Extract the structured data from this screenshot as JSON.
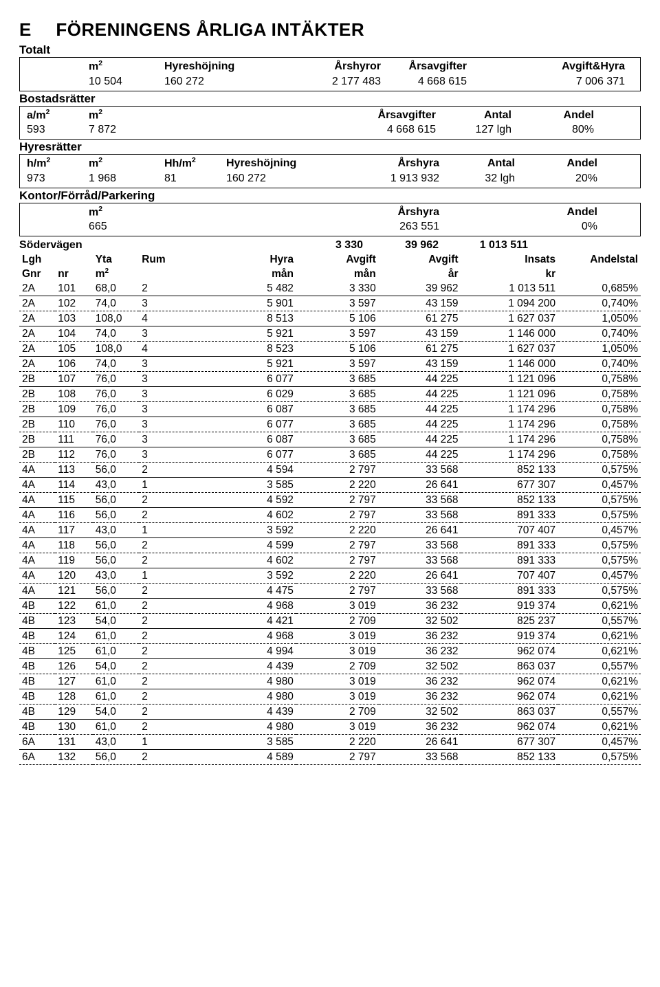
{
  "header": {
    "letter": "E",
    "title": "FÖRENINGENS ÅRLIGA INTÄKTER"
  },
  "totalt": {
    "label": "Totalt",
    "cols": [
      "m²",
      "Hyreshöjning",
      "Årshyror",
      "Årsavgifter",
      "Avgift&Hyra"
    ],
    "m2": "10 504",
    "hyreshojning": "160 272",
    "arshyror": "2 177 483",
    "arsavgifter": "4 668 615",
    "avgifthyra": "7 006 371"
  },
  "bostadsratter": {
    "label": "Bostadsrätter",
    "cols": [
      "a/m²",
      "m²",
      "",
      "",
      "Årsavgifter",
      "Antal",
      "Andel"
    ],
    "am2": "593",
    "m2": "7 872",
    "arsavgifter": "4 668 615",
    "antal": "127 lgh",
    "andel": "80%"
  },
  "hyresratter": {
    "label": "Hyresrätter",
    "cols": [
      "h/m²",
      "m²",
      "Hh/m²",
      "Hyreshöjning",
      "Årshyra",
      "Antal",
      "Andel"
    ],
    "hm2": "973",
    "m2": "1 968",
    "hhm2": "81",
    "hyreshojning": "160 272",
    "arshyra": "1 913 932",
    "antal": "32 lgh",
    "andel": "20%"
  },
  "kontor": {
    "label": "Kontor/Förråd/Parkering",
    "cols": [
      "",
      "m²",
      "",
      "",
      "Årshyra",
      "",
      "Andel"
    ],
    "m2": "665",
    "arshyra": "263 551",
    "andel": "0%"
  },
  "street": {
    "name": "Södervägen",
    "avgift_man": "3 330",
    "avgift_ar": "39 962",
    "insats": "1 013 511"
  },
  "table": {
    "headers1": [
      "Lgh",
      "",
      "Yta",
      "Rum",
      "Hyra",
      "Avgift",
      "Avgift",
      "Insats",
      "Andelstal"
    ],
    "headers2": [
      "Gnr",
      "nr",
      "m²",
      "",
      "mån",
      "mån",
      "år",
      "kr",
      ""
    ],
    "rows": [
      [
        "2A",
        "101",
        "68,0",
        "2",
        "5 482",
        "3 330",
        "39 962",
        "1 013 511",
        "0,685%"
      ],
      [
        "2A",
        "102",
        "74,0",
        "3",
        "5 901",
        "3 597",
        "43 159",
        "1 094 200",
        "0,740%"
      ],
      [
        "2A",
        "103",
        "108,0",
        "4",
        "8 513",
        "5 106",
        "61 275",
        "1 627 037",
        "1,050%"
      ],
      [
        "2A",
        "104",
        "74,0",
        "3",
        "5 921",
        "3 597",
        "43 159",
        "1 146 000",
        "0,740%"
      ],
      [
        "2A",
        "105",
        "108,0",
        "4",
        "8 523",
        "5 106",
        "61 275",
        "1 627 037",
        "1,050%"
      ],
      [
        "2A",
        "106",
        "74,0",
        "3",
        "5 921",
        "3 597",
        "43 159",
        "1 146 000",
        "0,740%"
      ],
      [
        "2B",
        "107",
        "76,0",
        "3",
        "6 077",
        "3 685",
        "44 225",
        "1 121 096",
        "0,758%"
      ],
      [
        "2B",
        "108",
        "76,0",
        "3",
        "6 029",
        "3 685",
        "44 225",
        "1 121 096",
        "0,758%"
      ],
      [
        "2B",
        "109",
        "76,0",
        "3",
        "6 087",
        "3 685",
        "44 225",
        "1 174 296",
        "0,758%"
      ],
      [
        "2B",
        "110",
        "76,0",
        "3",
        "6 077",
        "3 685",
        "44 225",
        "1 174 296",
        "0,758%"
      ],
      [
        "2B",
        "111",
        "76,0",
        "3",
        "6 087",
        "3 685",
        "44 225",
        "1 174 296",
        "0,758%"
      ],
      [
        "2B",
        "112",
        "76,0",
        "3",
        "6 077",
        "3 685",
        "44 225",
        "1 174 296",
        "0,758%"
      ],
      [
        "4A",
        "113",
        "56,0",
        "2",
        "4 594",
        "2 797",
        "33 568",
        "852 133",
        "0,575%"
      ],
      [
        "4A",
        "114",
        "43,0",
        "1",
        "3 585",
        "2 220",
        "26 641",
        "677 307",
        "0,457%"
      ],
      [
        "4A",
        "115",
        "56,0",
        "2",
        "4 592",
        "2 797",
        "33 568",
        "852 133",
        "0,575%"
      ],
      [
        "4A",
        "116",
        "56,0",
        "2",
        "4 602",
        "2 797",
        "33 568",
        "891 333",
        "0,575%"
      ],
      [
        "4A",
        "117",
        "43,0",
        "1",
        "3 592",
        "2 220",
        "26 641",
        "707 407",
        "0,457%"
      ],
      [
        "4A",
        "118",
        "56,0",
        "2",
        "4 599",
        "2 797",
        "33 568",
        "891 333",
        "0,575%"
      ],
      [
        "4A",
        "119",
        "56,0",
        "2",
        "4 602",
        "2 797",
        "33 568",
        "891 333",
        "0,575%"
      ],
      [
        "4A",
        "120",
        "43,0",
        "1",
        "3 592",
        "2 220",
        "26 641",
        "707 407",
        "0,457%"
      ],
      [
        "4A",
        "121",
        "56,0",
        "2",
        "4 475",
        "2 797",
        "33 568",
        "891 333",
        "0,575%"
      ],
      [
        "4B",
        "122",
        "61,0",
        "2",
        "4 968",
        "3 019",
        "36 232",
        "919 374",
        "0,621%"
      ],
      [
        "4B",
        "123",
        "54,0",
        "2",
        "4 421",
        "2 709",
        "32 502",
        "825 237",
        "0,557%"
      ],
      [
        "4B",
        "124",
        "61,0",
        "2",
        "4 968",
        "3 019",
        "36 232",
        "919 374",
        "0,621%"
      ],
      [
        "4B",
        "125",
        "61,0",
        "2",
        "4 994",
        "3 019",
        "36 232",
        "962 074",
        "0,621%"
      ],
      [
        "4B",
        "126",
        "54,0",
        "2",
        "4 439",
        "2 709",
        "32 502",
        "863 037",
        "0,557%"
      ],
      [
        "4B",
        "127",
        "61,0",
        "2",
        "4 980",
        "3 019",
        "36 232",
        "962 074",
        "0,621%"
      ],
      [
        "4B",
        "128",
        "61,0",
        "2",
        "4 980",
        "3 019",
        "36 232",
        "962 074",
        "0,621%"
      ],
      [
        "4B",
        "129",
        "54,0",
        "2",
        "4 439",
        "2 709",
        "32 502",
        "863 037",
        "0,557%"
      ],
      [
        "4B",
        "130",
        "61,0",
        "2",
        "4 980",
        "3 019",
        "36 232",
        "962 074",
        "0,621%"
      ],
      [
        "6A",
        "131",
        "43,0",
        "1",
        "3 585",
        "2 220",
        "26 641",
        "677 307",
        "0,457%"
      ],
      [
        "6A",
        "132",
        "56,0",
        "2",
        "4 589",
        "2 797",
        "33 568",
        "852 133",
        "0,575%"
      ]
    ],
    "solid_after_every": 2
  },
  "colors": {
    "text": "#000000",
    "bg": "#ffffff",
    "border": "#000000"
  }
}
